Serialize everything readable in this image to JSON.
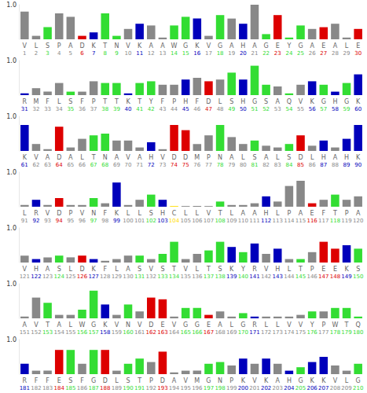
{
  "chart_data": [
    {
      "type": "bar",
      "ylim": [
        0,
        1
      ],
      "yticks": [
        {
          "value": 1,
          "label": "1.0"
        }
      ],
      "categories": [
        "V",
        "L",
        "S",
        "P",
        "A",
        "D",
        "K",
        "T",
        "N",
        "V",
        "K",
        "A",
        "A",
        "W",
        "G",
        "K",
        "V",
        "G",
        "A",
        "H",
        "A",
        "G",
        "E",
        "Y",
        "G",
        "A",
        "E",
        "A",
        "L",
        "E"
      ],
      "positions": [
        1,
        2,
        3,
        4,
        5,
        6,
        7,
        8,
        9,
        10,
        11,
        12,
        13,
        14,
        15,
        16,
        17,
        18,
        19,
        20,
        21,
        22,
        23,
        24,
        25,
        26,
        27,
        28,
        29,
        30
      ],
      "values": [
        0.8,
        0.1,
        0.35,
        0.75,
        0.65,
        0.1,
        0.2,
        0.75,
        0.1,
        0.3,
        0.45,
        0.4,
        0.05,
        0.4,
        0.65,
        0.6,
        0.1,
        0.7,
        0.6,
        0.45,
        1.0,
        0.15,
        0.7,
        0.05,
        0.4,
        0.3,
        0.35,
        0.45,
        0.05,
        0.3
      ],
      "colors": [
        "#888888",
        "#888888",
        "#33dd33",
        "#888888",
        "#888888",
        "#dd0000",
        "#0000bb",
        "#33dd33",
        "#33dd33",
        "#888888",
        "#0000bb",
        "#888888",
        "#888888",
        "#33dd33",
        "#33dd33",
        "#0000bb",
        "#888888",
        "#33dd33",
        "#888888",
        "#0000bb",
        "#888888",
        "#33dd33",
        "#dd0000",
        "#33dd33",
        "#33dd33",
        "#888888",
        "#dd0000",
        "#888888",
        "#888888",
        "#dd0000"
      ]
    },
    {
      "type": "bar",
      "ylim": [
        0,
        1
      ],
      "yticks": [
        {
          "value": 1,
          "label": "1.0"
        }
      ],
      "categories": [
        "R",
        "M",
        "F",
        "L",
        "S",
        "F",
        "P",
        "T",
        "T",
        "K",
        "T",
        "Y",
        "F",
        "P",
        "H",
        "F",
        "D",
        "L",
        "S",
        "H",
        "G",
        "S",
        "A",
        "Q",
        "V",
        "K",
        "G",
        "H",
        "G",
        "K"
      ],
      "positions": [
        31,
        32,
        33,
        34,
        35,
        36,
        37,
        38,
        39,
        40,
        41,
        42,
        43,
        44,
        45,
        46,
        47,
        48,
        49,
        50,
        51,
        52,
        53,
        54,
        55,
        56,
        57,
        58,
        59,
        60
      ],
      "values": [
        0.05,
        0.2,
        0.1,
        0.35,
        0.1,
        0.1,
        0.4,
        0.35,
        0.35,
        0.05,
        0.35,
        0.4,
        0.3,
        0.3,
        0.45,
        0.5,
        0.4,
        0.45,
        0.65,
        0.45,
        0.85,
        0.3,
        0.25,
        0.05,
        0.3,
        0.4,
        0.3,
        0.1,
        0.35,
        0.6
      ],
      "colors": [
        "#0000bb",
        "#888888",
        "#888888",
        "#888888",
        "#33dd33",
        "#888888",
        "#888888",
        "#33dd33",
        "#33dd33",
        "#0000bb",
        "#33dd33",
        "#33dd33",
        "#888888",
        "#888888",
        "#0000bb",
        "#888888",
        "#dd0000",
        "#888888",
        "#33dd33",
        "#0000bb",
        "#33dd33",
        "#33dd33",
        "#888888",
        "#33dd33",
        "#888888",
        "#0000bb",
        "#33dd33",
        "#0000bb",
        "#33dd33",
        "#0000bb"
      ]
    },
    {
      "type": "bar",
      "ylim": [
        0,
        1
      ],
      "yticks": [
        {
          "value": 1,
          "label": "1.0"
        }
      ],
      "categories": [
        "K",
        "V",
        "A",
        "D",
        "A",
        "L",
        "T",
        "N",
        "A",
        "V",
        "A",
        "H",
        "V",
        "D",
        "D",
        "M",
        "P",
        "N",
        "A",
        "L",
        "S",
        "A",
        "L",
        "S",
        "D",
        "L",
        "H",
        "A",
        "H",
        "K"
      ],
      "positions": [
        61,
        62,
        63,
        64,
        65,
        66,
        67,
        68,
        69,
        70,
        71,
        72,
        73,
        74,
        75,
        76,
        77,
        78,
        79,
        80,
        81,
        82,
        83,
        84,
        85,
        86,
        87,
        88,
        89,
        90
      ],
      "values": [
        0.75,
        0.2,
        0.05,
        0.7,
        0.1,
        0.35,
        0.45,
        0.5,
        0.3,
        0.3,
        0.1,
        0.25,
        0.05,
        0.75,
        0.6,
        0.2,
        0.45,
        0.75,
        0.4,
        0.2,
        0.3,
        0.15,
        0.1,
        0.2,
        0.45,
        0.15,
        0.3,
        0.1,
        0.35,
        0.75
      ],
      "colors": [
        "#0000bb",
        "#888888",
        "#888888",
        "#dd0000",
        "#888888",
        "#888888",
        "#33dd33",
        "#33dd33",
        "#888888",
        "#888888",
        "#888888",
        "#0000bb",
        "#888888",
        "#dd0000",
        "#dd0000",
        "#888888",
        "#888888",
        "#33dd33",
        "#888888",
        "#888888",
        "#33dd33",
        "#888888",
        "#888888",
        "#33dd33",
        "#dd0000",
        "#888888",
        "#0000bb",
        "#888888",
        "#0000bb",
        "#0000bb"
      ]
    },
    {
      "type": "bar",
      "ylim": [
        0,
        1
      ],
      "yticks": [
        {
          "value": 1,
          "label": "1.0"
        }
      ],
      "categories": [
        "L",
        "R",
        "V",
        "D",
        "P",
        "V",
        "N",
        "F",
        "K",
        "L",
        "L",
        "S",
        "H",
        "C",
        "L",
        "L",
        "V",
        "T",
        "L",
        "A",
        "A",
        "H",
        "L",
        "P",
        "A",
        "E",
        "F",
        "T",
        "P",
        "A"
      ],
      "positions": [
        91,
        92,
        93,
        94,
        95,
        96,
        97,
        98,
        99,
        100,
        101,
        102,
        103,
        104,
        105,
        106,
        107,
        108,
        109,
        110,
        111,
        112,
        113,
        114,
        115,
        116,
        117,
        118,
        119,
        120
      ],
      "values": [
        0.05,
        0.2,
        0.05,
        0.25,
        0.05,
        0.05,
        0.25,
        0.1,
        0.7,
        0.05,
        0.2,
        0.35,
        0.2,
        0.02,
        0.02,
        0.02,
        0.02,
        0.15,
        0.05,
        0.05,
        0.1,
        0.3,
        0.15,
        0.6,
        0.75,
        0.1,
        0.2,
        0.35,
        0.2,
        0.3
      ],
      "colors": [
        "#888888",
        "#0000bb",
        "#888888",
        "#dd0000",
        "#888888",
        "#888888",
        "#33dd33",
        "#888888",
        "#0000bb",
        "#888888",
        "#888888",
        "#33dd33",
        "#0000bb",
        "#ffdd00",
        "#888888",
        "#888888",
        "#888888",
        "#33dd33",
        "#888888",
        "#888888",
        "#888888",
        "#0000bb",
        "#888888",
        "#888888",
        "#888888",
        "#dd0000",
        "#888888",
        "#33dd33",
        "#888888",
        "#888888"
      ]
    },
    {
      "type": "bar",
      "ylim": [
        0,
        1
      ],
      "yticks": [
        {
          "value": 1,
          "label": "1.0"
        }
      ],
      "categories": [
        "V",
        "H",
        "A",
        "S",
        "L",
        "D",
        "K",
        "F",
        "L",
        "A",
        "S",
        "V",
        "S",
        "T",
        "V",
        "L",
        "T",
        "S",
        "K",
        "Y",
        "R",
        "V",
        "H",
        "L",
        "T",
        "P",
        "E",
        "E",
        "K",
        "S"
      ],
      "positions": [
        121,
        122,
        123,
        124,
        125,
        126,
        127,
        128,
        129,
        130,
        131,
        132,
        133,
        134,
        135,
        136,
        137,
        138,
        139,
        140,
        141,
        142,
        143,
        144,
        145,
        146,
        147,
        148,
        149,
        150
      ],
      "values": [
        0.2,
        0.1,
        0.15,
        0.2,
        0.15,
        0.2,
        0.1,
        0.05,
        0.1,
        0.2,
        0.2,
        0.1,
        0.25,
        0.6,
        0.1,
        0.25,
        0.35,
        0.6,
        0.45,
        0.3,
        0.55,
        0.25,
        0.4,
        0.1,
        0.1,
        0.3,
        0.6,
        0.4,
        0.5,
        0.4
      ],
      "colors": [
        "#888888",
        "#0000bb",
        "#888888",
        "#33dd33",
        "#888888",
        "#dd0000",
        "#0000bb",
        "#888888",
        "#888888",
        "#888888",
        "#33dd33",
        "#888888",
        "#33dd33",
        "#33dd33",
        "#888888",
        "#888888",
        "#33dd33",
        "#33dd33",
        "#0000bb",
        "#33dd33",
        "#0000bb",
        "#888888",
        "#0000bb",
        "#888888",
        "#33dd33",
        "#888888",
        "#dd0000",
        "#dd0000",
        "#0000bb",
        "#33dd33"
      ]
    },
    {
      "type": "bar",
      "ylim": [
        0,
        1
      ],
      "yticks": [
        {
          "value": 1,
          "label": "1.0"
        }
      ],
      "categories": [
        "A",
        "V",
        "T",
        "A",
        "L",
        "W",
        "G",
        "K",
        "V",
        "N",
        "V",
        "D",
        "E",
        "V",
        "G",
        "G",
        "E",
        "A",
        "L",
        "G",
        "R",
        "L",
        "L",
        "V",
        "V",
        "Y",
        "P",
        "W",
        "T",
        "Q"
      ],
      "positions": [
        151,
        152,
        153,
        154,
        155,
        156,
        157,
        158,
        159,
        160,
        161,
        162,
        163,
        164,
        165,
        166,
        167,
        168,
        169,
        170,
        171,
        172,
        173,
        174,
        175,
        176,
        177,
        178,
        179,
        180
      ],
      "values": [
        0.05,
        0.6,
        0.45,
        0.1,
        0.1,
        0.25,
        0.8,
        0.4,
        0.1,
        0.4,
        0.2,
        0.6,
        0.55,
        0.05,
        0.3,
        0.3,
        0.1,
        0.2,
        0.05,
        0.15,
        0.05,
        0.05,
        0.05,
        0.05,
        0.1,
        0.2,
        0.2,
        0.3,
        0.3,
        0.05
      ],
      "colors": [
        "#888888",
        "#888888",
        "#33dd33",
        "#888888",
        "#888888",
        "#33dd33",
        "#33dd33",
        "#0000bb",
        "#888888",
        "#33dd33",
        "#888888",
        "#dd0000",
        "#dd0000",
        "#888888",
        "#33dd33",
        "#33dd33",
        "#dd0000",
        "#888888",
        "#888888",
        "#33dd33",
        "#0000bb",
        "#888888",
        "#888888",
        "#888888",
        "#888888",
        "#33dd33",
        "#888888",
        "#33dd33",
        "#33dd33",
        "#33dd33"
      ]
    },
    {
      "type": "bar",
      "ylim": [
        0,
        1
      ],
      "yticks": [
        {
          "value": 1,
          "label": "1.0"
        }
      ],
      "categories": [
        "R",
        "F",
        "F",
        "E",
        "S",
        "F",
        "G",
        "D",
        "L",
        "S",
        "T",
        "P",
        "D",
        "A",
        "V",
        "M",
        "G",
        "N",
        "P",
        "K",
        "V",
        "K",
        "A",
        "H",
        "G",
        "K",
        "K",
        "V",
        "L",
        "G"
      ],
      "positions": [
        181,
        182,
        183,
        184,
        185,
        186,
        187,
        188,
        189,
        190,
        191,
        192,
        193,
        194,
        195,
        196,
        197,
        198,
        199,
        200,
        201,
        202,
        203,
        204,
        205,
        206,
        207,
        208,
        209,
        210
      ],
      "values": [
        0.3,
        0.1,
        0.1,
        0.7,
        0.7,
        0.3,
        0.7,
        0.7,
        0.1,
        0.3,
        0.45,
        0.35,
        0.65,
        0.05,
        0.1,
        0.1,
        0.3,
        0.35,
        0.25,
        0.45,
        0.3,
        0.45,
        0.3,
        0.1,
        0.2,
        0.35,
        0.5,
        0.25,
        0.1,
        0.3
      ],
      "colors": [
        "#0000bb",
        "#888888",
        "#888888",
        "#dd0000",
        "#33dd33",
        "#888888",
        "#33dd33",
        "#dd0000",
        "#888888",
        "#33dd33",
        "#33dd33",
        "#888888",
        "#dd0000",
        "#888888",
        "#888888",
        "#888888",
        "#33dd33",
        "#33dd33",
        "#888888",
        "#0000bb",
        "#888888",
        "#0000bb",
        "#888888",
        "#0000bb",
        "#33dd33",
        "#0000bb",
        "#0000bb",
        "#888888",
        "#888888",
        "#33dd33"
      ]
    }
  ]
}
